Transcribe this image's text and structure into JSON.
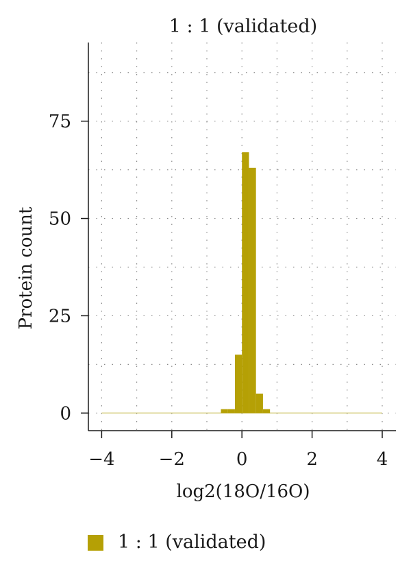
{
  "chart_data": {
    "type": "bar",
    "title": "1 : 1 (validated)",
    "xlabel": "log2(18O/16O)",
    "ylabel": "Protein count",
    "xlim": [
      -4.2,
      4.2
    ],
    "ylim": [
      -5,
      95
    ],
    "xticks": [
      -4,
      -2,
      0,
      2,
      4
    ],
    "xtick_labels": [
      "−4",
      "−2",
      "0",
      "2",
      "4"
    ],
    "yticks": [
      0,
      25,
      50,
      75
    ],
    "ytick_labels": [
      "0",
      "25",
      "50",
      "75"
    ],
    "grid": true,
    "grid_style": "dotted",
    "bin_width": 0.2,
    "bins": [
      {
        "x0": -0.6,
        "x1": -0.4,
        "count": 1
      },
      {
        "x0": -0.4,
        "x1": -0.2,
        "count": 1
      },
      {
        "x0": -0.2,
        "x1": 0.0,
        "count": 15
      },
      {
        "x0": 0.0,
        "x1": 0.2,
        "count": 67
      },
      {
        "x0": 0.2,
        "x1": 0.4,
        "count": 63
      },
      {
        "x0": 0.4,
        "x1": 0.6,
        "count": 5
      },
      {
        "x0": 0.6,
        "x1": 0.8,
        "count": 1
      }
    ],
    "baseline_range": [
      -4,
      4
    ],
    "series": [
      {
        "name": "1 : 1 (validated)",
        "color": "#b5a005"
      }
    ],
    "legend_position": "bottom-left"
  }
}
